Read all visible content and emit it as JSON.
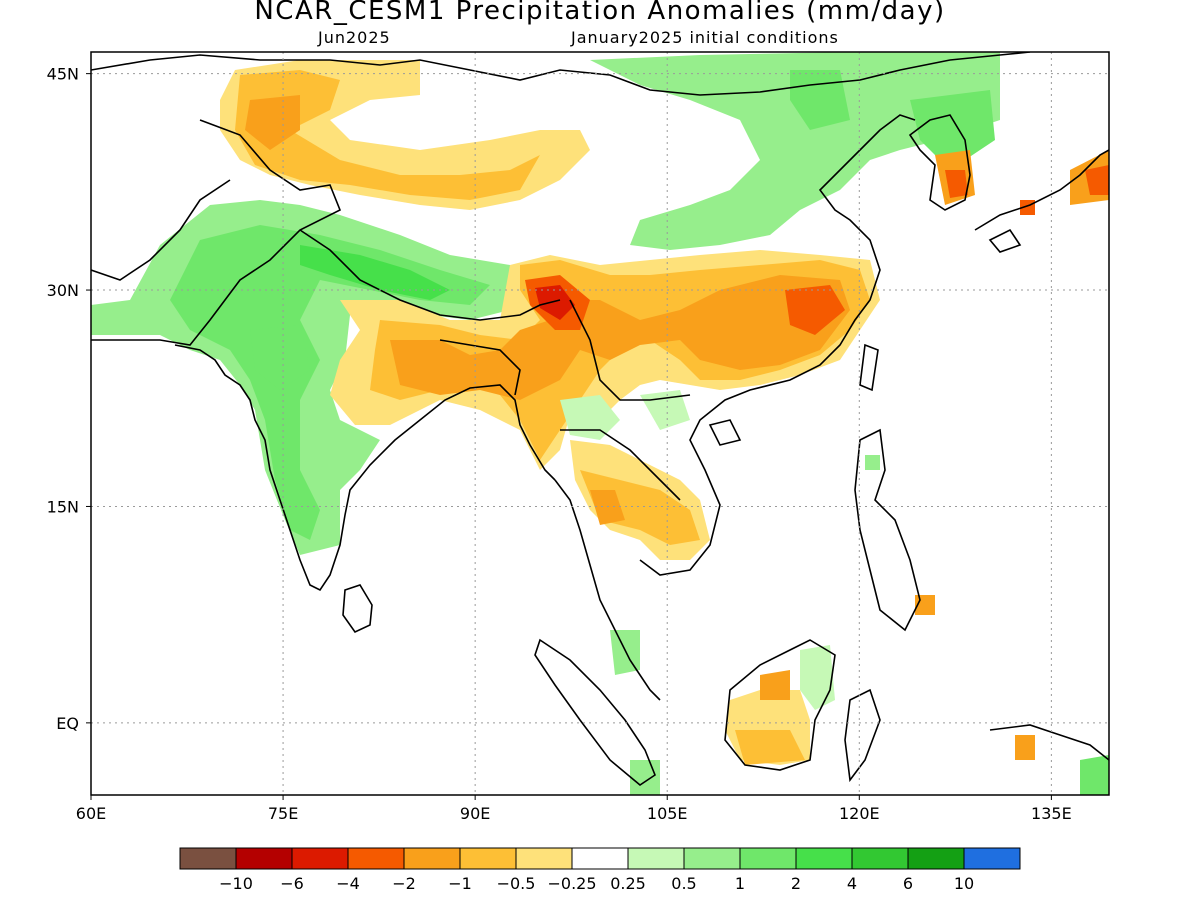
{
  "title": "NCAR_CESM1 Precipitation Anomalies (mm/day)",
  "subtitle_left": "Jun2025",
  "subtitle_right": "January2025 initial conditions",
  "map": {
    "lat_labels": [
      "45N",
      "30N",
      "15N",
      "EQ"
    ],
    "lon_labels": [
      "60E",
      "75E",
      "90E",
      "105E",
      "120E",
      "135E"
    ],
    "lat_values": [
      45,
      30,
      15,
      0
    ],
    "lon_values": [
      60,
      75,
      90,
      105,
      120,
      135
    ],
    "extent": {
      "lon_min": 60,
      "lon_max": 139.5,
      "lat_min": -5,
      "lat_max": 46.5
    }
  },
  "colorbar": {
    "colors": [
      "#7a5040",
      "#b40000",
      "#dc1a00",
      "#f55a00",
      "#f9a01b",
      "#fdbf35",
      "#fee17a",
      "#ffffff",
      "#c6f9b6",
      "#96ee8c",
      "#6fe76a",
      "#46e04a",
      "#32c832",
      "#14a014",
      "#1f6fe0"
    ],
    "labels": [
      "-10",
      "-6",
      "-4",
      "-2",
      "-1",
      "-0.5",
      "-0.25",
      "0.25",
      "0.5",
      "1",
      "2",
      "4",
      "6",
      "10"
    ]
  }
}
